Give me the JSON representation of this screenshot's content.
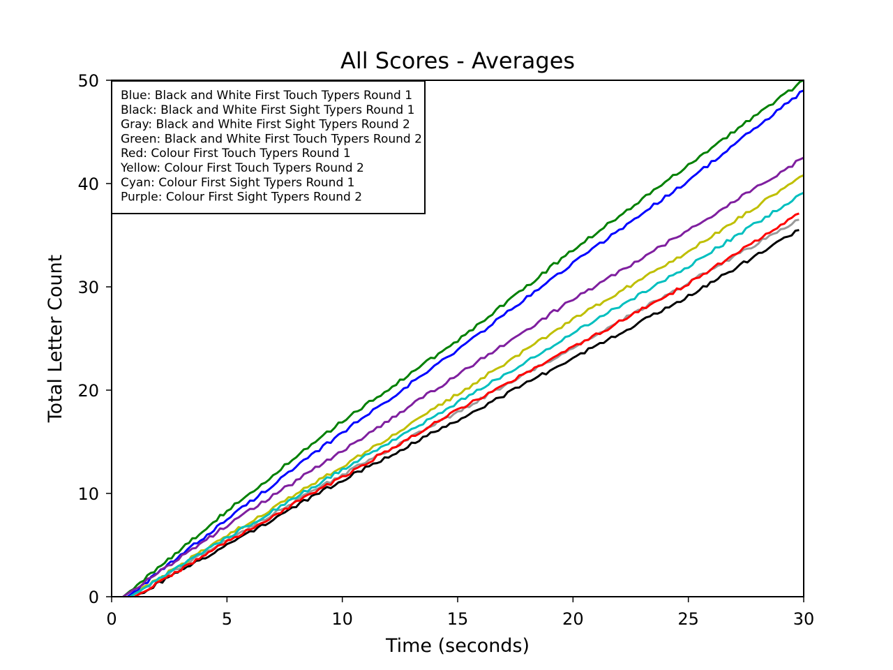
{
  "chart_data": {
    "type": "line",
    "title": "All Scores - Averages",
    "xlabel": "Time (seconds)",
    "ylabel": "Total Letter Count",
    "xlim": [
      0,
      30
    ],
    "ylim": [
      0,
      50
    ],
    "xticks": [
      "0",
      "5",
      "10",
      "15",
      "20",
      "25",
      "30"
    ],
    "yticks": [
      "0",
      "10",
      "20",
      "30",
      "40",
      "50"
    ],
    "grid": false,
    "legend_placement": "top-left",
    "legend": [
      "Blue: Black and White First Touch Typers Round 1",
      "Black: Black and White First Sight Typers Round 1",
      "Gray: Black and White First Sight Typers Round 2",
      "Green: Black and White First Touch Typers Round 2",
      "Red: Colour First Touch Typers Round 1",
      "Yellow: Colour First Touch Typers Round 2",
      "Cyan: Colour First Sight Typers Round 1",
      "Purple: Colour First Sight Typers Round 2"
    ],
    "series": [
      {
        "color": "#0000ff",
        "x": [
          0.7,
          5,
          10,
          15,
          20,
          25,
          30
        ],
        "y": [
          0,
          7.5,
          15.9,
          23.9,
          32.3,
          40.3,
          49
        ]
      },
      {
        "color": "#000000",
        "x": [
          1.0,
          5,
          10,
          15,
          20,
          25,
          29.8
        ],
        "y": [
          0,
          5.0,
          11.3,
          17.1,
          23.1,
          29.1,
          35.5
        ]
      },
      {
        "color": "#999999",
        "x": [
          0.8,
          5,
          10,
          15,
          20,
          25,
          29.8
        ],
        "y": [
          0,
          5.5,
          11.8,
          17.9,
          24.1,
          30.4,
          36.5
        ]
      },
      {
        "color": "#008000",
        "x": [
          0.5,
          5,
          10,
          15,
          20,
          25,
          30
        ],
        "y": [
          0,
          8.3,
          17.0,
          24.8,
          33.6,
          41.8,
          50
        ]
      },
      {
        "color": "#ff0000",
        "x": [
          1.0,
          5,
          10,
          15,
          20,
          25,
          29.8
        ],
        "y": [
          0,
          5.3,
          11.6,
          18.1,
          24.1,
          30.3,
          37.1
        ]
      },
      {
        "color": "#bfbf00",
        "x": [
          0.8,
          5,
          10,
          15,
          20,
          25,
          30
        ],
        "y": [
          0,
          5.9,
          12.6,
          19.6,
          26.9,
          33.4,
          40.8
        ]
      },
      {
        "color": "#00bfbf",
        "x": [
          0.8,
          5,
          10,
          15,
          20,
          25,
          30
        ],
        "y": [
          0,
          5.7,
          12.3,
          18.8,
          25.5,
          32.0,
          39.1
        ]
      },
      {
        "color": "#7f1f9f",
        "x": [
          0.5,
          5,
          10,
          15,
          20,
          25,
          30
        ],
        "y": [
          0,
          6.9,
          14.1,
          21.5,
          28.8,
          35.5,
          42.5
        ]
      }
    ]
  }
}
